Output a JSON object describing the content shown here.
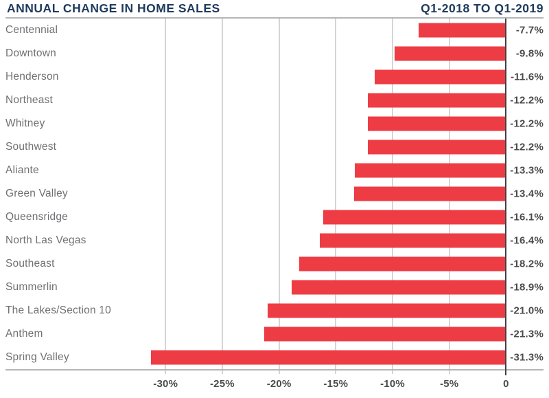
{
  "header": {
    "title_left": "ANNUAL CHANGE IN HOME SALES",
    "title_right": "Q1-2018 TO Q1-2019"
  },
  "chart_data": {
    "type": "bar",
    "orientation": "horizontal",
    "title": "ANNUAL CHANGE IN HOME SALES",
    "subtitle": "Q1-2018 TO Q1-2019",
    "categories": [
      "Centennial",
      "Downtown",
      "Henderson",
      "Northeast",
      "Whitney",
      "Southwest",
      "Aliante",
      "Green Valley",
      "Queensridge",
      "North Las Vegas",
      "Southeast",
      "Summerlin",
      "The Lakes/Section 10",
      "Anthem",
      "Spring Valley"
    ],
    "values": [
      -7.7,
      -9.8,
      -11.6,
      -12.2,
      -12.2,
      -12.2,
      -13.3,
      -13.4,
      -16.1,
      -16.4,
      -18.2,
      -18.9,
      -21.0,
      -21.3,
      -31.3
    ],
    "value_labels": [
      "-7.7%",
      "-9.8%",
      "-11.6%",
      "-12.2%",
      "-12.2%",
      "-12.2%",
      "-13.3%",
      "-13.4%",
      "-16.1%",
      "-16.4%",
      "-18.2%",
      "-18.9%",
      "-21.0%",
      "-21.3%",
      "-31.3%"
    ],
    "xlabel": "",
    "ylabel": "",
    "x_ticks": [
      -30,
      -25,
      -20,
      -15,
      -10,
      -5,
      0
    ],
    "x_tick_labels": [
      "-30%",
      "-25%",
      "-20%",
      "-15%",
      "-10%",
      "-5%",
      "0"
    ],
    "xlim": [
      -44.1,
      3.3
    ],
    "grid": true,
    "legend": false,
    "bar_color": "#ee3c45"
  },
  "colors": {
    "title_navy": "#1e3a5c",
    "bar_red": "#ee3c45",
    "category_label_gray": "#6f7073",
    "value_label_gray": "#4a4b4d",
    "gridline_gray": "#d4d5d7",
    "border_gray": "#b3b5b7",
    "zero_line_dark": "#3f4042",
    "background": "#ffffff"
  }
}
